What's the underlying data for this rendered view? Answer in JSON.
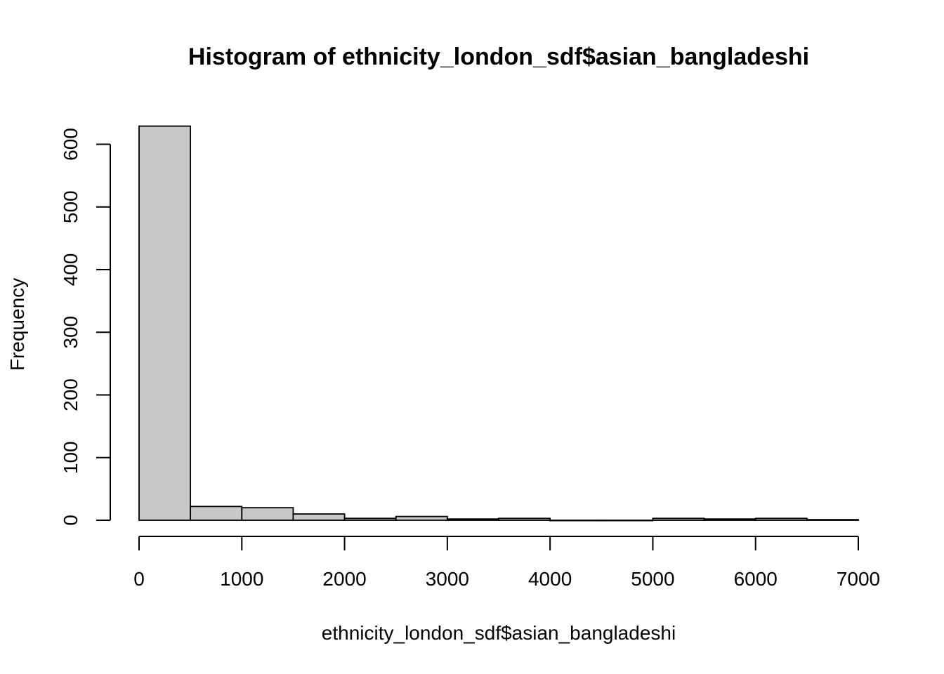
{
  "chart_data": {
    "type": "bar",
    "title": "Histogram of ethnicity_london_sdf$asian_bangladeshi",
    "xlabel": "ethnicity_london_sdf$asian_bangladeshi",
    "ylabel": "Frequency",
    "bin_edges": [
      0,
      500,
      1000,
      1500,
      2000,
      2500,
      3000,
      3500,
      4000,
      4500,
      5000,
      5500,
      6000,
      6500,
      7000
    ],
    "values": [
      629,
      22,
      20,
      10,
      3,
      6,
      2,
      3,
      0,
      0,
      3,
      2,
      3,
      1
    ],
    "xlim": [
      0,
      7000
    ],
    "ylim": [
      0,
      629
    ],
    "x_ticks": [
      0,
      1000,
      2000,
      3000,
      4000,
      5000,
      6000,
      7000
    ],
    "y_ticks": [
      0,
      100,
      200,
      300,
      400,
      500,
      600
    ],
    "grid": false,
    "bar_color": "#c8c8c8",
    "edge_color": "#000000"
  }
}
